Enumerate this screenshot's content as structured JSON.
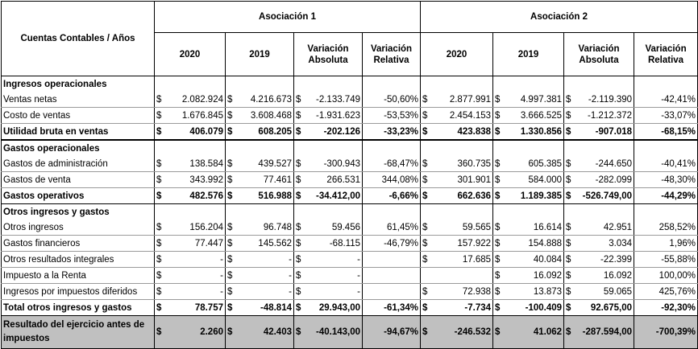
{
  "header": {
    "account_label": "Cuentas Contables / Años",
    "assoc1": "Asociación 1",
    "assoc2": "Asociación 2",
    "cols": [
      "2020",
      "2019",
      "Variación Absoluta",
      "Variación Relativa",
      "2020",
      "2019",
      "Variación Absoluta",
      "Variación Relativa"
    ]
  },
  "currency": "$",
  "rows": [
    {
      "type": "section",
      "label": "Ingresos operacionales"
    },
    {
      "type": "data",
      "label": "Ventas netas",
      "cells": [
        [
          "$",
          "2.082.924"
        ],
        [
          "$",
          "4.216.673"
        ],
        [
          "$",
          "-2.133.749"
        ],
        [
          "",
          "-50,60%"
        ],
        [
          "$",
          "2.877.991"
        ],
        [
          "$",
          "4.997.381"
        ],
        [
          "$",
          "-2.119.390"
        ],
        [
          "",
          "-42,41%"
        ]
      ]
    },
    {
      "type": "data",
      "label": "Costo de ventas",
      "cells": [
        [
          "$",
          "1.676.845"
        ],
        [
          "$",
          "3.608.468"
        ],
        [
          "$",
          "-1.931.623"
        ],
        [
          "",
          "-53,53%"
        ],
        [
          "$",
          "2.454.153"
        ],
        [
          "$",
          "3.666.525"
        ],
        [
          "$",
          "-1.212.372"
        ],
        [
          "",
          "-33,07%"
        ]
      ]
    },
    {
      "type": "total",
      "label": "Utilidad bruta en ventas",
      "cells": [
        [
          "$",
          "406.079"
        ],
        [
          "$",
          "608.205"
        ],
        [
          "$",
          "-202.126"
        ],
        [
          "",
          "-33,23%"
        ],
        [
          "$",
          "423.838"
        ],
        [
          "$",
          "1.330.856"
        ],
        [
          "$",
          "-907.018"
        ],
        [
          "",
          "-68,15%"
        ]
      ]
    },
    {
      "type": "section",
      "label": "Gastos operacionales"
    },
    {
      "type": "data",
      "label": "Gastos de administración",
      "cells": [
        [
          "$",
          "138.584"
        ],
        [
          "$",
          "439.527"
        ],
        [
          "$",
          "-300.943"
        ],
        [
          "",
          "-68,47%"
        ],
        [
          "$",
          "360.735"
        ],
        [
          "$",
          "605.385"
        ],
        [
          "$",
          "-244.650"
        ],
        [
          "",
          "-40,41%"
        ]
      ]
    },
    {
      "type": "data",
      "label": "Gastos de venta",
      "cells": [
        [
          "$",
          "343.992"
        ],
        [
          "$",
          "77.461"
        ],
        [
          "$",
          "266.531"
        ],
        [
          "",
          "344,08%"
        ],
        [
          "$",
          "301.901"
        ],
        [
          "$",
          "584.000"
        ],
        [
          "$",
          "-282.099"
        ],
        [
          "",
          "-48,30%"
        ]
      ]
    },
    {
      "type": "total",
      "label": "Gastos operativos",
      "cells": [
        [
          "$",
          "482.576"
        ],
        [
          "$",
          "516.988"
        ],
        [
          "$",
          "-34.412,00"
        ],
        [
          "",
          "-6,66%"
        ],
        [
          "$",
          "662.636"
        ],
        [
          "$",
          "1.189.385"
        ],
        [
          "$",
          "-526.749,00"
        ],
        [
          "",
          "-44,29%"
        ]
      ]
    },
    {
      "type": "section",
      "label": "Otros ingresos y gastos"
    },
    {
      "type": "data",
      "label": "Otros ingresos",
      "cells": [
        [
          "$",
          "156.204"
        ],
        [
          "$",
          "96.748"
        ],
        [
          "$",
          "59.456"
        ],
        [
          "",
          "61,45%"
        ],
        [
          "$",
          "59.565"
        ],
        [
          "$",
          "16.614"
        ],
        [
          "$",
          "42.951"
        ],
        [
          "",
          "258,52%"
        ]
      ]
    },
    {
      "type": "data",
      "label": "Gastos financieros",
      "cells": [
        [
          "$",
          "77.447"
        ],
        [
          "$",
          "145.562"
        ],
        [
          "$",
          "-68.115"
        ],
        [
          "",
          "-46,79%"
        ],
        [
          "$",
          "157.922"
        ],
        [
          "$",
          "154.888"
        ],
        [
          "$",
          "3.034"
        ],
        [
          "",
          "1,96%"
        ]
      ]
    },
    {
      "type": "data",
      "label": "Otros resultados integrales",
      "cells": [
        [
          "$",
          "-"
        ],
        [
          "$",
          "-"
        ],
        [
          "$",
          "-"
        ],
        [
          "",
          ""
        ],
        [
          "$",
          "17.685"
        ],
        [
          "$",
          "40.084"
        ],
        [
          "$",
          "-22.399"
        ],
        [
          "",
          "-55,88%"
        ]
      ]
    },
    {
      "type": "data",
      "label": "Impuesto a la Renta",
      "cells": [
        [
          "$",
          "-"
        ],
        [
          "$",
          "-"
        ],
        [
          "$",
          "-"
        ],
        [
          "",
          ""
        ],
        [
          "",
          ""
        ],
        [
          "$",
          "16.092"
        ],
        [
          "$",
          "16.092"
        ],
        [
          "",
          "100,00%"
        ]
      ]
    },
    {
      "type": "data",
      "label": "Ingresos por impuestos diferidos",
      "cells": [
        [
          "$",
          "-"
        ],
        [
          "$",
          "-"
        ],
        [
          "$",
          "-"
        ],
        [
          "",
          ""
        ],
        [
          "$",
          "72.938"
        ],
        [
          "$",
          "13.873"
        ],
        [
          "$",
          "59.065"
        ],
        [
          "",
          "425,76%"
        ]
      ]
    },
    {
      "type": "total",
      "label": "Total otros ingresos y gastos",
      "cells": [
        [
          "$",
          "78.757"
        ],
        [
          "$",
          "-48.814"
        ],
        [
          "$",
          "29.943,00"
        ],
        [
          "",
          "-61,34%"
        ],
        [
          "$",
          "-7.734"
        ],
        [
          "$",
          "-100.409"
        ],
        [
          "$",
          "92.675,00"
        ],
        [
          "",
          "-92,30%"
        ]
      ]
    },
    {
      "type": "final",
      "label": "Resultado del ejercicio antes de impuestos",
      "cells": [
        [
          "$",
          "2.260"
        ],
        [
          "$",
          "42.403"
        ],
        [
          "$",
          "-40.143,00"
        ],
        [
          "",
          "-94,67%"
        ],
        [
          "$",
          "-246.532"
        ],
        [
          "$",
          "41.062"
        ],
        [
          "$",
          "-287.594,00"
        ],
        [
          "",
          "-700,39%"
        ]
      ]
    }
  ]
}
